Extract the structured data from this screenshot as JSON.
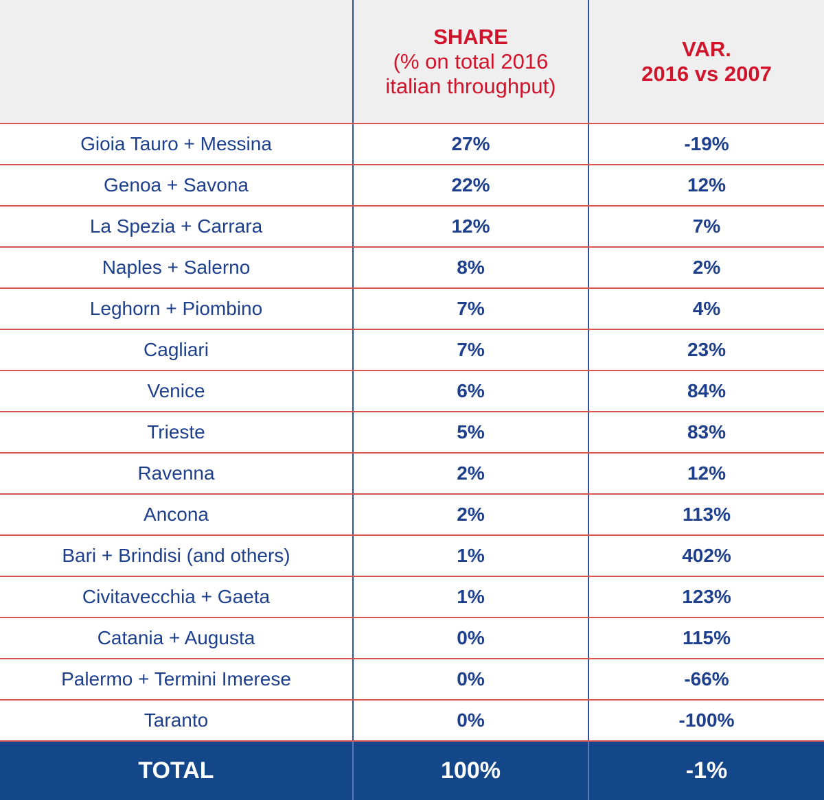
{
  "table": {
    "header": [
      {
        "title": "SHARE",
        "subtitle_lines": [
          "(% on total 2016",
          "italian throughput)"
        ]
      },
      {
        "title": "VAR.",
        "subtitle_lines": [
          "2016 vs 2007"
        ]
      }
    ],
    "rows": [
      [
        "Gioia Tauro + Messina",
        "27%",
        "-19%"
      ],
      [
        "Genoa + Savona",
        "22%",
        "12%"
      ],
      [
        "La Spezia + Carrara",
        "12%",
        "7%"
      ],
      [
        "Naples + Salerno",
        "8%",
        "2%"
      ],
      [
        "Leghorn + Piombino",
        "7%",
        "4%"
      ],
      [
        "Cagliari",
        "7%",
        "23%"
      ],
      [
        "Venice",
        "6%",
        "84%"
      ],
      [
        "Trieste",
        "5%",
        "83%"
      ],
      [
        "Ravenna",
        "2%",
        "12%"
      ],
      [
        "Ancona",
        "2%",
        "113%"
      ],
      [
        "Bari + Brindisi (and others)",
        "1%",
        "402%"
      ],
      [
        "Civitavecchia + Gaeta",
        "1%",
        "123%"
      ],
      [
        "Catania + Augusta",
        "0%",
        "115%"
      ],
      [
        "Palermo + Termini Imerese",
        "0%",
        "-66%"
      ],
      [
        "Taranto",
        "0%",
        "-100%"
      ]
    ],
    "total": [
      "TOTAL",
      "100%",
      "-1%"
    ]
  }
}
